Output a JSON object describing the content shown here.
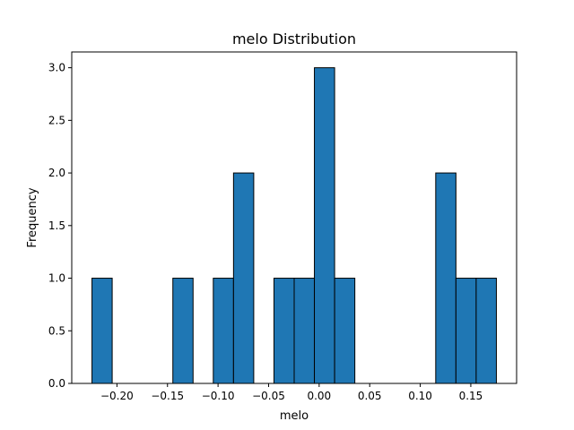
{
  "chart_data": {
    "type": "bar",
    "title": "melo Distribution",
    "xlabel": "melo",
    "ylabel": "Frequency",
    "bin_edges": [
      -0.2247,
      -0.2047,
      -0.1847,
      -0.1647,
      -0.1447,
      -0.1247,
      -0.1047,
      -0.0847,
      -0.0647,
      -0.0447,
      -0.0247,
      -0.0047,
      0.0153,
      0.0353,
      0.0553,
      0.0753,
      0.0953,
      0.1153,
      0.1353,
      0.1553,
      0.1753
    ],
    "counts": [
      1,
      0,
      0,
      0,
      1,
      0,
      1,
      2,
      0,
      1,
      1,
      3,
      1,
      0,
      0,
      0,
      0,
      2,
      1,
      1
    ],
    "xlim": [
      -0.2447,
      0.1953
    ],
    "ylim": [
      0,
      3.15
    ],
    "xticks": [
      -0.2,
      -0.15,
      -0.1,
      -0.05,
      0.0,
      0.05,
      0.1,
      0.15
    ],
    "xtick_labels": [
      "−0.20",
      "−0.15",
      "−0.10",
      "−0.05",
      "0.00",
      "0.05",
      "0.10",
      "0.15"
    ],
    "yticks": [
      0,
      0.5,
      1.0,
      1.5,
      2.0,
      2.5,
      3.0
    ],
    "ytick_labels": [
      "0.0",
      "0.5",
      "1.0",
      "1.5",
      "2.0",
      "2.5",
      "3.0"
    ],
    "bar_color": "#1f77b4",
    "edge_color": "#000000",
    "grid": false,
    "legend": "none"
  }
}
